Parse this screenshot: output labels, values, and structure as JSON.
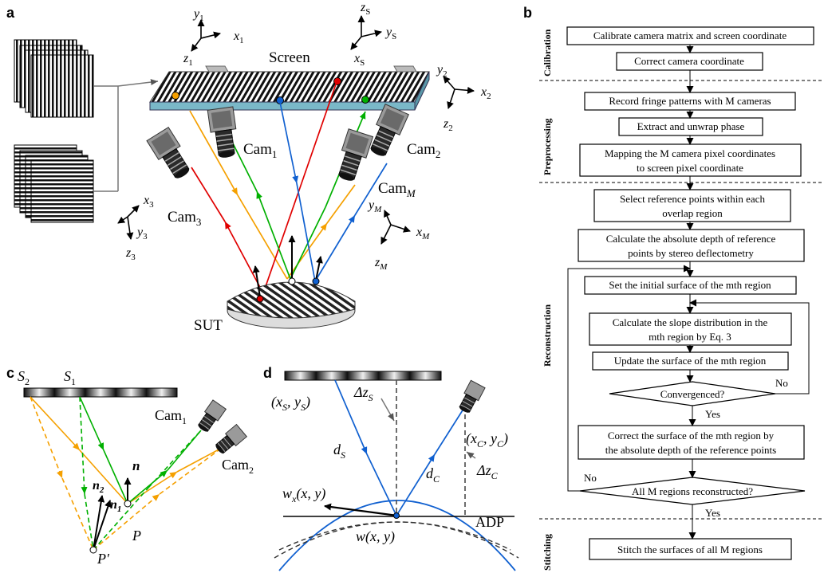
{
  "panels": {
    "a": "a",
    "b": "b",
    "c": "c",
    "d": "d"
  },
  "panel_a": {
    "screen": "Screen",
    "sut": "SUT",
    "cam1": "Cam",
    "cam1_sub": "1",
    "cam2": "Cam",
    "cam2_sub": "2",
    "cam3": "Cam",
    "cam3_sub": "3",
    "camM": "Cam",
    "camM_sub": "M",
    "axes": {
      "scr": {
        "x": "x",
        "y": "y",
        "z": "z",
        "sub": "S"
      },
      "c1": {
        "x": "x",
        "y": "y",
        "z": "z",
        "sub": "1"
      },
      "c2": {
        "x": "x",
        "y": "y",
        "z": "z",
        "sub": "2"
      },
      "c3": {
        "x": "x",
        "y": "y",
        "z": "z",
        "sub": "3"
      },
      "cM": {
        "x": "x",
        "y": "y",
        "z": "z",
        "sub": "M"
      }
    },
    "colors": {
      "cam1": "#00b000",
      "cam2": "#f5a000",
      "cam3": "#e00000",
      "camM": "#1060d0",
      "marker_orange": "#f5a000",
      "marker_red": "#e00000",
      "marker_blue": "#1060d0",
      "marker_green": "#00b000"
    }
  },
  "panel_b": {
    "stages": [
      "Calibration",
      "Preprocessing",
      "Reconstruction",
      "Stitching"
    ],
    "steps": [
      [
        "Calibrate camera matrix and screen coordinate"
      ],
      [
        "Correct camera coordinate"
      ],
      [
        "Record fringe patterns with M cameras"
      ],
      [
        "Extract and unwrap phase"
      ],
      [
        "Mapping the M camera pixel coordinates",
        "to screen pixel coordinate"
      ],
      [
        "Select reference points within each",
        "overlap region"
      ],
      [
        "Calculate the absolute depth of reference",
        "points by stereo deflectometry"
      ],
      [
        "Set the initial surface of the mth region"
      ],
      [
        "Calculate the slope distribution in the",
        "mth region by Eq. 3"
      ],
      [
        "Update the surface of the mth region"
      ],
      [
        "Correct the surface of the mth region by",
        "the absolute depth of the reference points"
      ],
      [
        "Stitch the surfaces of  all M regions"
      ]
    ],
    "decision1": "Convergenced?",
    "decision2": "All M regions reconstructed?",
    "yes": "Yes",
    "no": "No"
  },
  "panel_c": {
    "s2": "S",
    "s2_sub": "2",
    "s1": "S",
    "s1_sub": "1",
    "cam1": "Cam",
    "cam1_sub": "1",
    "cam2": "Cam",
    "cam2_sub": "2",
    "n": "n",
    "n1": "n",
    "n1_sub": "1",
    "n2": "n",
    "n2_sub": "2",
    "p": "P",
    "p_prime": "P′",
    "colors": {
      "ray1": "#00b000",
      "ray2": "#f5a000"
    }
  },
  "panel_d": {
    "xs": "(x",
    "xs_sub": "S",
    "ys_sep": ", y",
    "ys_sub": "S",
    "close": ")",
    "xc": "(x",
    "xc_sub": "C",
    "yc_sep": ", y",
    "yc_sub": "C",
    "dzs": "Δz",
    "dzs_sub": "S",
    "dzc": "Δz",
    "dzc_sub": "C",
    "ds": "d",
    "ds_sub": "S",
    "dc": "d",
    "dc_sub": "C",
    "wx": "w",
    "wx_sub": "x",
    "wx_args": "(x, y)",
    "w": "w(x, y)",
    "adp": "ADP",
    "colors": {
      "ray": "#1060d0",
      "surface": "#1060d0"
    }
  }
}
